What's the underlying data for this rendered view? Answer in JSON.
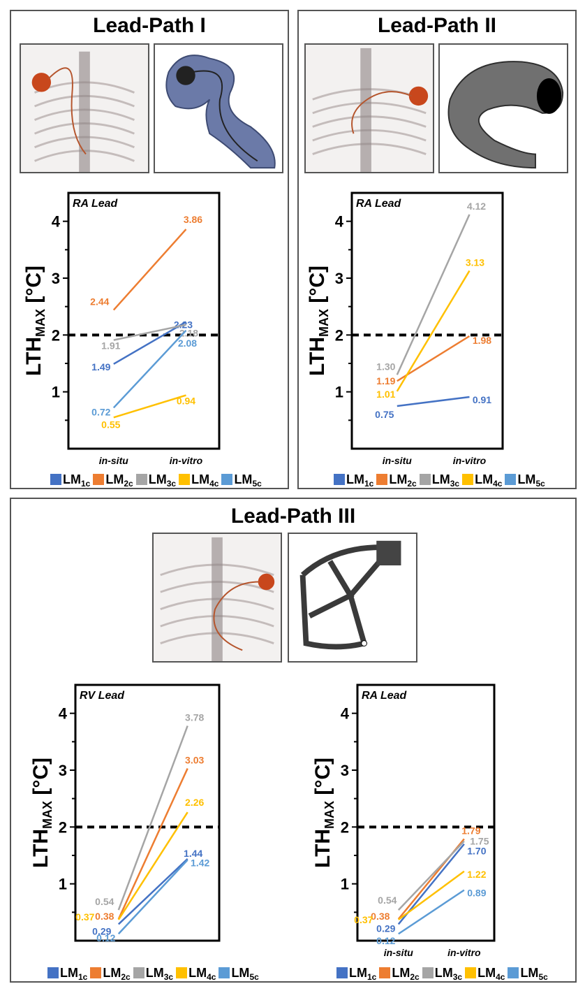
{
  "colors": {
    "LM1c": "#4472C4",
    "LM2c": "#ED7D31",
    "LM3c": "#A5A5A5",
    "LM4c": "#FFC000",
    "LM5c": "#5B9BD5",
    "threshold": "#000000"
  },
  "legend_items": [
    {
      "main": "LM",
      "sub": "1c",
      "color_key": "LM1c"
    },
    {
      "main": "LM",
      "sub": "2c",
      "color_key": "LM2c"
    },
    {
      "main": "LM",
      "sub": "3c",
      "color_key": "LM3c"
    },
    {
      "main": "LM",
      "sub": "4c",
      "color_key": "LM4c"
    },
    {
      "main": "LM",
      "sub": "5c",
      "color_key": "LM5c"
    }
  ],
  "panels": [
    {
      "title": "Lead-Path I"
    },
    {
      "title": "Lead-Path II"
    },
    {
      "title": "Lead-Path III"
    }
  ],
  "chart_data": [
    {
      "type": "line",
      "title": "RA Lead",
      "ylabel": "LTH",
      "ylabel_sub": "MAX",
      "ylabel_unit": "[°C]",
      "categories": [
        "in-situ",
        "in-vitro"
      ],
      "ylim": [
        0,
        4.5
      ],
      "yticks": [
        1,
        2,
        3,
        4
      ],
      "threshold": 2,
      "series": [
        {
          "name": "LM1c",
          "values": [
            1.49,
            2.23
          ],
          "labels": [
            "1.49",
            "2.23"
          ]
        },
        {
          "name": "LM2c",
          "values": [
            2.44,
            3.86
          ],
          "labels": [
            "2.44",
            "3.86"
          ]
        },
        {
          "name": "LM3c",
          "values": [
            1.91,
            2.18
          ],
          "labels": [
            "1.91",
            "2.18"
          ]
        },
        {
          "name": "LM4c",
          "values": [
            0.55,
            0.94
          ],
          "labels": [
            "0.55",
            "0.94"
          ]
        },
        {
          "name": "LM5c",
          "values": [
            0.72,
            2.08
          ],
          "labels": [
            "0.72",
            "2.08"
          ]
        }
      ]
    },
    {
      "type": "line",
      "title": "RA Lead",
      "ylabel": "LTH",
      "ylabel_sub": "MAX",
      "ylabel_unit": "[°C]",
      "categories": [
        "in-situ",
        "in-vitro"
      ],
      "ylim": [
        0,
        4.5
      ],
      "yticks": [
        1,
        2,
        3,
        4
      ],
      "threshold": 2,
      "series": [
        {
          "name": "LM1c",
          "values": [
            0.75,
            0.91
          ],
          "labels": [
            "0.75",
            "0.91"
          ]
        },
        {
          "name": "LM2c",
          "values": [
            1.19,
            1.98
          ],
          "labels": [
            "1.19",
            "1.98"
          ]
        },
        {
          "name": "LM3c",
          "values": [
            1.3,
            4.12
          ],
          "labels": [
            "1.30",
            "4.12"
          ]
        },
        {
          "name": "LM4c",
          "values": [
            1.01,
            3.13
          ],
          "labels": [
            "1.01",
            "3.13"
          ]
        }
      ]
    },
    {
      "type": "line",
      "title": "RV Lead",
      "ylabel": "LTH",
      "ylabel_sub": "MAX",
      "ylabel_unit": "[°C]",
      "categories": [
        "",
        ""
      ],
      "ylim": [
        0,
        4.5
      ],
      "yticks": [
        1,
        2,
        3,
        4
      ],
      "threshold": 2,
      "series": [
        {
          "name": "LM1c",
          "values": [
            0.29,
            1.44
          ],
          "labels": [
            "0.29",
            "1.44"
          ]
        },
        {
          "name": "LM2c",
          "values": [
            0.38,
            3.03
          ],
          "labels": [
            "0.38",
            "3.03"
          ]
        },
        {
          "name": "LM3c",
          "values": [
            0.54,
            3.78
          ],
          "labels": [
            "0.54",
            "3.78"
          ]
        },
        {
          "name": "LM4c",
          "values": [
            0.37,
            2.26
          ],
          "labels": [
            "0.37",
            "2.26"
          ]
        },
        {
          "name": "LM5c",
          "values": [
            0.12,
            1.42
          ],
          "labels": [
            "0.12",
            "1.42"
          ]
        }
      ]
    },
    {
      "type": "line",
      "title": "RA Lead",
      "ylabel": "LTH",
      "ylabel_sub": "MAX",
      "ylabel_unit": "[°C]",
      "categories": [
        "in-situ",
        "in-vitro"
      ],
      "ylim": [
        0,
        4.5
      ],
      "yticks": [
        1,
        2,
        3,
        4
      ],
      "threshold": 2,
      "series": [
        {
          "name": "LM1c",
          "values": [
            0.29,
            1.7
          ],
          "labels": [
            "0.29",
            "1.70"
          ]
        },
        {
          "name": "LM2c",
          "values": [
            0.38,
            1.79
          ],
          "labels": [
            "0.38",
            "1.79"
          ]
        },
        {
          "name": "LM3c",
          "values": [
            0.54,
            1.75
          ],
          "labels": [
            "0.54",
            "1.75"
          ]
        },
        {
          "name": "LM4c",
          "values": [
            0.37,
            1.22
          ],
          "labels": [
            "0.37",
            "1.22"
          ]
        },
        {
          "name": "LM5c",
          "values": [
            0.12,
            0.89
          ],
          "labels": [
            "0.12",
            "0.89"
          ]
        }
      ]
    }
  ]
}
